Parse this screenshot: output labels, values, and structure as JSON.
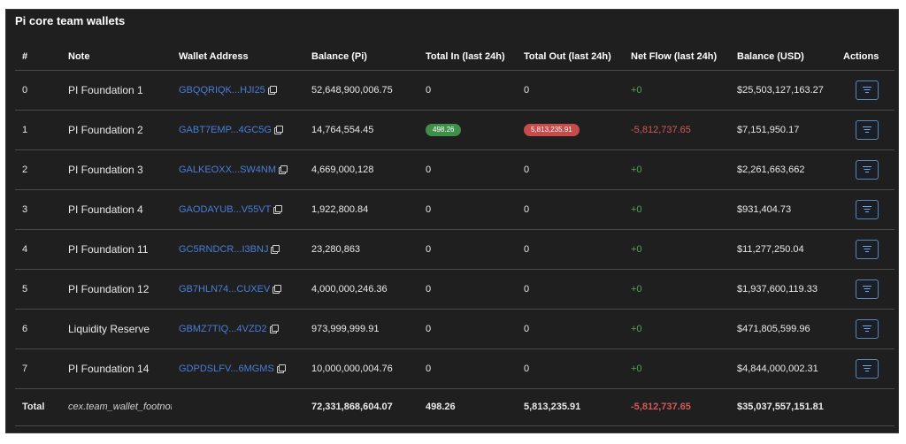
{
  "title": "Pi core team wallets",
  "headers": [
    "#",
    "Note",
    "Wallet Address",
    "Balance (Pi)",
    "Total In (last 24h)",
    "Total Out (last 24h)",
    "Net Flow (last 24h)",
    "Balance (USD)",
    "Actions"
  ],
  "rows": [
    {
      "index": "0",
      "note": "PI Foundation 1",
      "address": "GBQQRIQK...HJI25",
      "balance_pi": "52,648,900,006.75",
      "total_in": "0",
      "total_out": "0",
      "net_flow": "+0",
      "balance_usd": "$25,503,127,163.27"
    },
    {
      "index": "1",
      "note": "PI Foundation 2",
      "address": "GABT7EMP...4GC5G",
      "balance_pi": "14,764,554.45",
      "total_in": "498.26",
      "total_out": "5,813,235.91",
      "net_flow": "-5,812,737.65",
      "balance_usd": "$7,151,950.17"
    },
    {
      "index": "2",
      "note": "PI Foundation 3",
      "address": "GALKEOXX...SW4NM",
      "balance_pi": "4,669,000,128",
      "total_in": "0",
      "total_out": "0",
      "net_flow": "+0",
      "balance_usd": "$2,261,663,662"
    },
    {
      "index": "3",
      "note": "PI Foundation 4",
      "address": "GAODAYUB...V55VT",
      "balance_pi": "1,922,800.84",
      "total_in": "0",
      "total_out": "0",
      "net_flow": "+0",
      "balance_usd": "$931,404.73"
    },
    {
      "index": "4",
      "note": "PI Foundation 11",
      "address": "GC5RNDCR...I3BNJ",
      "balance_pi": "23,280,863",
      "total_in": "0",
      "total_out": "0",
      "net_flow": "+0",
      "balance_usd": "$11,277,250.04"
    },
    {
      "index": "5",
      "note": "PI Foundation 12",
      "address": "GB7HLN74...CUXEV",
      "balance_pi": "4,000,000,246.36",
      "total_in": "0",
      "total_out": "0",
      "net_flow": "+0",
      "balance_usd": "$1,937,600,119.33"
    },
    {
      "index": "6",
      "note": "Liquidity Reserve",
      "address": "GBMZ7TIQ...4VZD2",
      "balance_pi": "973,999,999.91",
      "total_in": "0",
      "total_out": "0",
      "net_flow": "+0",
      "balance_usd": "$471,805,599.96"
    },
    {
      "index": "7",
      "note": "PI Foundation 14",
      "address": "GDPDSLFV...6MGMS",
      "balance_pi": "10,000,000,004.76",
      "total_in": "0",
      "total_out": "0",
      "net_flow": "+0",
      "balance_usd": "$4,844,000,002.31"
    }
  ],
  "total": {
    "label": "Total",
    "note": "cex.team_wallet_footnote",
    "balance_pi": "72,331,868,604.07",
    "total_in": "498.26",
    "total_out": "5,813,235.91",
    "net_flow": "-5,812,737.65",
    "balance_usd": "$35,037,557,151.81"
  },
  "colors": {
    "positive": "#53a35e",
    "negative": "#d05a5a",
    "address": "#4a7dd8",
    "badge_in": "#3f8f4a",
    "badge_out": "#c84b4b"
  },
  "icons": {
    "copy": "copy-icon",
    "action": "filter-icon"
  }
}
